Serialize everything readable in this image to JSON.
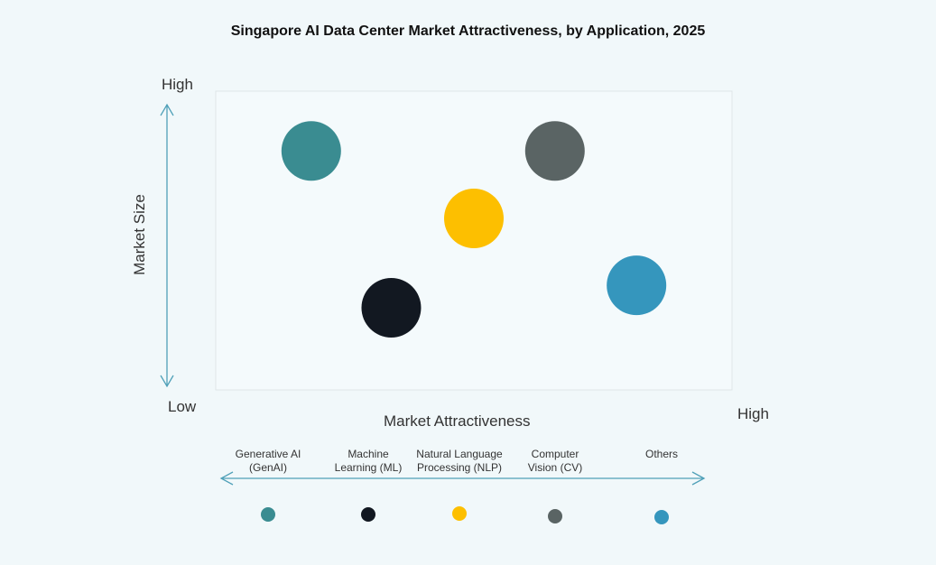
{
  "chart_data": {
    "type": "scatter",
    "title": "Singapore AI Data Center Market Attractiveness,  by Application, 2025",
    "xlabel": "Market Attractiveness",
    "ylabel": "Market Size",
    "x_low": "",
    "x_high": "High",
    "y_low": "Low",
    "y_high": "High",
    "xlim": [
      0,
      1
    ],
    "ylim": [
      0,
      1
    ],
    "grid": false,
    "legend_position": "bottom",
    "series": [
      {
        "name": "Generative AI (GenAI)",
        "line1": "Generative AI",
        "line2": "(GenAI)",
        "x": 0.185,
        "y": 0.8,
        "color": "#3a8c91"
      },
      {
        "name": "Machine Learning (ML)",
        "line1": "Machine",
        "line2": "Learning (ML)",
        "x": 0.34,
        "y": 0.275,
        "color": "#121821"
      },
      {
        "name": "Natural Language Processing (NLP)",
        "line1": "Natural Language",
        "line2": "Processing (NLP)",
        "x": 0.5,
        "y": 0.574,
        "color": "#fdbf00"
      },
      {
        "name": "Computer Vision (CV)",
        "line1": "Computer",
        "line2": "Vision (CV)",
        "x": 0.657,
        "y": 0.8,
        "color": "#5a6464"
      },
      {
        "name": "Others",
        "line1": "Others",
        "line2": "",
        "x": 0.815,
        "y": 0.35,
        "color": "#3596bd"
      }
    ],
    "axis_color": "#4fa0b8"
  }
}
